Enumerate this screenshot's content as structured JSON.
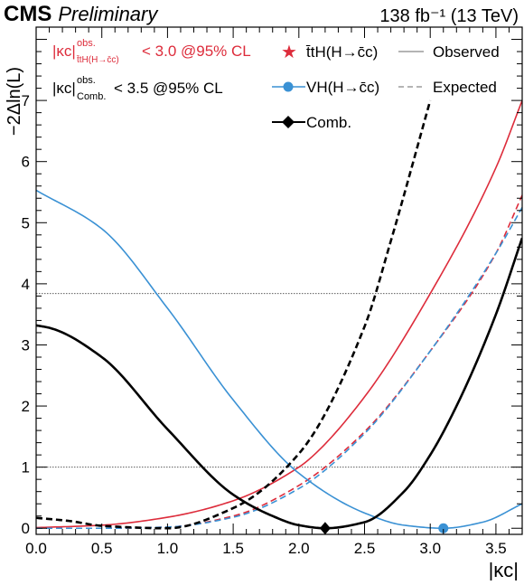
{
  "header": {
    "experiment": "CMS",
    "status": "Preliminary",
    "lumi": "138 fb⁻¹ (13 TeV)"
  },
  "colors": {
    "tth": "#dd2c3b",
    "vh": "#3a91d4",
    "comb": "#000000",
    "ref_lines": "#444444"
  },
  "annotations": {
    "limit_tth": {
      "kappa": "|κc|",
      "sup": "obs.",
      "sub": "t̄tH(H→c̄c)",
      "text": "< 3.0 @95% CL"
    },
    "limit_comb": {
      "kappa": "|κc|",
      "sup": "obs.",
      "sub": "Comb.",
      "text": "< 3.5 @95% CL"
    }
  },
  "legend": {
    "tth": "t̄tH(H→c̄c)",
    "vh": "VH(H→c̄c)",
    "comb": "Comb.",
    "observed": "Observed",
    "expected": "Expected"
  },
  "chart_data": {
    "type": "line",
    "xlabel": "|κc|",
    "ylabel": "−2Δln(L)",
    "xlim": [
      0,
      3.7
    ],
    "ylim": [
      -0.1,
      8.2
    ],
    "xticks": [
      "0.0",
      "0.5",
      "1.0",
      "1.5",
      "2.0",
      "2.5",
      "3.0",
      "3.5"
    ],
    "yticks": [
      "0",
      "1",
      "2",
      "3",
      "4",
      "5",
      "6",
      "7"
    ],
    "reference_lines": [
      1,
      3.84
    ],
    "grid": false,
    "legend_position": "top-right",
    "series": [
      {
        "name": "t̄tH(H→c̄c)",
        "style": "observed",
        "x": [
          0,
          0.5,
          1.0,
          1.5,
          2.0,
          2.1,
          2.5,
          3.0,
          3.5,
          3.7
        ],
        "y": [
          0.01,
          0.05,
          0.18,
          0.45,
          1.0,
          1.17,
          2.15,
          3.84,
          5.9,
          7.0
        ]
      },
      {
        "name": "t̄tH(H→c̄c)",
        "style": "expected",
        "x": [
          0,
          0.5,
          1.0,
          1.5,
          2.0,
          2.5,
          3.0,
          3.5,
          3.7
        ],
        "y": [
          0.0,
          0.0,
          0.02,
          0.2,
          0.7,
          1.58,
          2.9,
          4.5,
          5.45
        ]
      },
      {
        "name": "VH(H→c̄c)",
        "style": "observed",
        "x": [
          0,
          0.5,
          1.0,
          1.5,
          2.0,
          2.5,
          2.8,
          3.1,
          3.4,
          3.7
        ],
        "y": [
          5.53,
          4.9,
          3.6,
          2.1,
          0.9,
          0.25,
          0.05,
          0.0,
          0.1,
          0.4
        ]
      },
      {
        "name": "VH(H→c̄c)",
        "style": "expected",
        "x": [
          0,
          0.5,
          1.0,
          1.5,
          2.0,
          2.5,
          3.0,
          3.5,
          3.7
        ],
        "y": [
          0.0,
          0.0,
          0.02,
          0.18,
          0.65,
          1.55,
          2.9,
          4.5,
          5.25
        ]
      },
      {
        "name": "Comb.",
        "style": "observed",
        "x": [
          0,
          0.1,
          0.5,
          1.0,
          1.5,
          1.8,
          2.0,
          2.2,
          2.5,
          2.8,
          3.0,
          3.2,
          3.5,
          3.7
        ],
        "y": [
          3.32,
          3.28,
          2.8,
          1.62,
          0.55,
          0.2,
          0.05,
          0.0,
          0.1,
          0.6,
          1.2,
          2.0,
          3.5,
          4.75
        ]
      },
      {
        "name": "Comb.",
        "style": "expected",
        "x": [
          0,
          0.25,
          0.5,
          1.0,
          1.5,
          2.0,
          2.5,
          2.7,
          3.0
        ],
        "y": [
          0.17,
          0.12,
          0.04,
          0.0,
          0.33,
          1.22,
          3.3,
          4.7,
          7.0
        ]
      }
    ],
    "best_fit_markers": [
      {
        "series": "Comb.",
        "x": 2.2,
        "y": 0.0,
        "marker": "diamond"
      },
      {
        "series": "VH(H→c̄c)",
        "x": 3.1,
        "y": 0.0,
        "marker": "circle"
      }
    ]
  }
}
